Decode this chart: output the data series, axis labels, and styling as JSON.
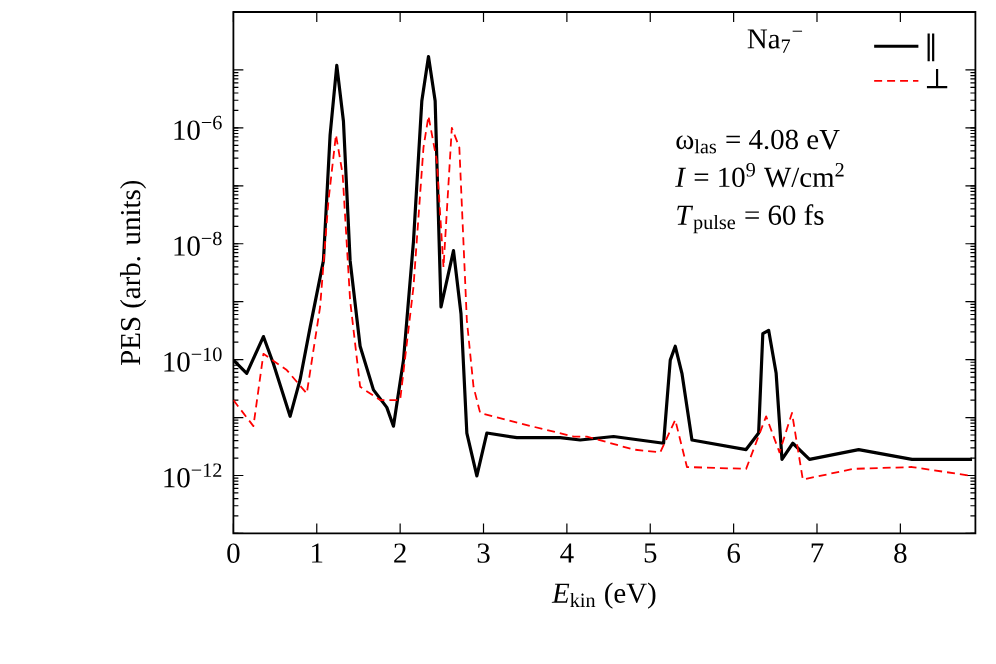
{
  "chart_data": {
    "type": "line",
    "xlabel": "*E*$_{kin}$ (eV)",
    "ylabel": "PES (arb. units)",
    "legend_title": "Na$_{7}$$^{−}$",
    "legend": "top right",
    "log": "y",
    "marker": "none",
    "xlim": [
      0,
      8.9
    ],
    "xticks": [
      0,
      1,
      2,
      3,
      4,
      5,
      6,
      7,
      8
    ],
    "ylim": [
      1e-13,
      0.0001
    ],
    "yticks": [
      {
        "value": 1e-13,
        "label": null
      },
      {
        "value": 1e-12,
        "label": "10$^{−12}$"
      },
      {
        "value": 1e-11,
        "label": null
      },
      {
        "value": 1e-10,
        "label": "10$^{−10}$"
      },
      {
        "value": 1e-09,
        "label": null
      },
      {
        "value": 1e-08,
        "label": "10$^{−8}$"
      },
      {
        "value": 1e-07,
        "label": null
      },
      {
        "value": 1e-06,
        "label": "10$^{−6}$"
      },
      {
        "value": 1e-05,
        "label": null
      }
    ],
    "annotations": [
      "ω$_{las}$ = 4.08 eV",
      "*I* = 10$^{9}$ W/cm$^{2}$",
      "*T*$_{pulse}$ = 60 fs"
    ],
    "series": [
      {
        "name": "‖",
        "color": "#000000",
        "line_style": "solid",
        "x": [
          0,
          0.16,
          0.36,
          0.48,
          0.68,
          0.8,
          0.92,
          1.08,
          1.16,
          1.24,
          1.32,
          1.4,
          1.52,
          1.68,
          1.84,
          1.92,
          2.04,
          2.16,
          2.26,
          2.34,
          2.42,
          2.49,
          2.64,
          2.73,
          2.8,
          2.92,
          3.04,
          3.4,
          3.92,
          4.16,
          4.56,
          5.16,
          5.24,
          5.3,
          5.38,
          5.5,
          6.15,
          6.3,
          6.35,
          6.42,
          6.51,
          6.58,
          6.71,
          6.91,
          7.5,
          8.14,
          8.86
        ],
        "values": [
          9.8e-11,
          5.8e-11,
          2.5e-10,
          8.5e-11,
          1.05e-11,
          4.5e-11,
          3.6e-10,
          5.1e-09,
          7.6e-07,
          1.2e-05,
          1.3e-06,
          5.1e-09,
          1.7e-10,
          3e-11,
          1.5e-11,
          7.1e-12,
          9.8e-11,
          1.1e-08,
          2.9e-06,
          1.7e-05,
          2.9e-06,
          8.1e-10,
          7.6e-09,
          6.2e-10,
          5.4e-12,
          9.8e-13,
          5.4e-12,
          4.5e-12,
          4.5e-12,
          4.1e-12,
          4.7e-12,
          3.6e-12,
          9.8e-11,
          1.7e-10,
          5.8e-11,
          4.1e-12,
          2.8e-12,
          5.4e-12,
          2.8e-10,
          3.2e-10,
          5.8e-11,
          1.9e-12,
          3.6e-12,
          1.9e-12,
          2.8e-12,
          1.9e-12,
          1.9e-12
        ]
      },
      {
        "name": "⊥",
        "color": "#ff0000",
        "line_style": "dashed",
        "x": [
          0,
          0.24,
          0.36,
          0.64,
          0.88,
          1.04,
          1.14,
          1.23,
          1.31,
          1.4,
          1.52,
          1.76,
          2.0,
          2.16,
          2.28,
          2.34,
          2.44,
          2.52,
          2.62,
          2.71,
          2.8,
          2.88,
          2.96,
          3.44,
          4.08,
          4.24,
          4.8,
          5.12,
          5.3,
          5.44,
          6.15,
          6.39,
          6.55,
          6.7,
          6.83,
          7.43,
          8.14,
          8.86
        ],
        "values": [
          2e-11,
          7.1e-12,
          1.26e-10,
          6.6e-11,
          2.6e-11,
          8.1e-10,
          5.5e-08,
          7.6e-07,
          1.6e-07,
          1.05e-09,
          3.4e-11,
          2e-11,
          2e-11,
          1.8e-09,
          4.6e-07,
          1.6e-06,
          2.7e-07,
          3.9e-09,
          1e-06,
          4.6e-07,
          4.8e-10,
          3.4e-11,
          1.2e-11,
          7.9e-12,
          4.7e-12,
          4.7e-12,
          2.8e-12,
          2.5e-12,
          9.1e-12,
          1.4e-12,
          1.3e-12,
          1.05e-11,
          2.5e-12,
          1.2e-11,
          8.5e-13,
          1.3e-12,
          1.4e-12,
          9.8e-13
        ]
      }
    ]
  }
}
